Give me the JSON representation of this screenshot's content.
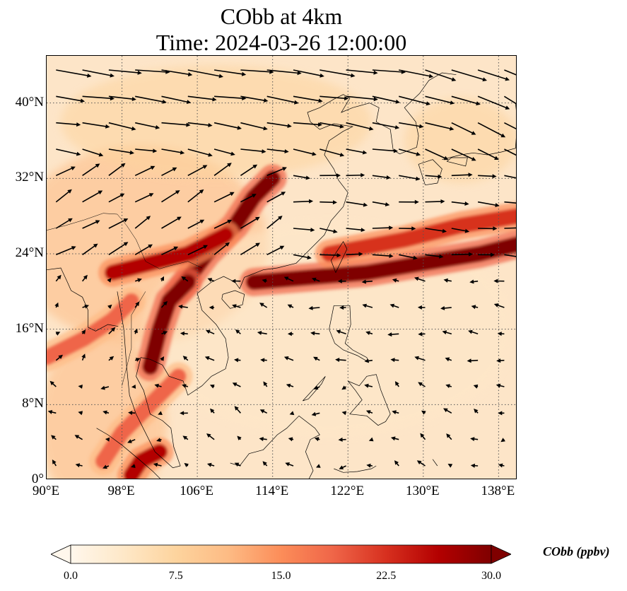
{
  "title": {
    "line1": "CObb at 4km",
    "line2": "Time: 2024-03-26 12:00:00"
  },
  "map": {
    "lon_range": [
      90,
      140
    ],
    "lat_range": [
      0,
      45
    ],
    "lon_ticks": [
      {
        "value": 90,
        "label": "90°E"
      },
      {
        "value": 98,
        "label": "98°E"
      },
      {
        "value": 106,
        "label": "106°E"
      },
      {
        "value": 114,
        "label": "114°E"
      },
      {
        "value": 122,
        "label": "122°E"
      },
      {
        "value": 130,
        "label": "130°E"
      },
      {
        "value": 138,
        "label": "138°E"
      }
    ],
    "lat_ticks": [
      {
        "value": 0,
        "label": "0°"
      },
      {
        "value": 8,
        "label": "8°N"
      },
      {
        "value": 16,
        "label": "16°N"
      },
      {
        "value": 24,
        "label": "24°N"
      },
      {
        "value": 32,
        "label": "32°N"
      },
      {
        "value": 40,
        "label": "40°N"
      }
    ],
    "gridlines": true,
    "variable": "CObb",
    "colormap": "OrRd"
  },
  "colorbar": {
    "label": "CObb (ppbv)",
    "min": 0.0,
    "max": 30.0,
    "extend": "both",
    "ticks": [
      {
        "value": 0.0,
        "label": "0.0"
      },
      {
        "value": 7.5,
        "label": "7.5"
      },
      {
        "value": 15.0,
        "label": "15.0"
      },
      {
        "value": 22.5,
        "label": "22.5"
      },
      {
        "value": 30.0,
        "label": "30.0"
      }
    ],
    "colors": [
      "#fff7ec",
      "#fee8c8",
      "#fdd49e",
      "#fdbb84",
      "#fc8d59",
      "#ef6548",
      "#d7301f",
      "#b30000",
      "#7f0000"
    ]
  },
  "plumes": [
    {
      "points": [
        [
          104,
          20
        ],
        [
          107,
          24
        ],
        [
          110,
          27
        ],
        [
          112,
          30
        ],
        [
          114,
          32
        ]
      ],
      "value": 30
    },
    {
      "points": [
        [
          112,
          21
        ],
        [
          118,
          21.5
        ],
        [
          124,
          22
        ],
        [
          130,
          23
        ],
        [
          136,
          24
        ],
        [
          140,
          25
        ]
      ],
      "value": 30
    },
    {
      "points": [
        [
          90,
          13
        ],
        [
          94,
          15
        ],
        [
          97,
          17
        ],
        [
          99,
          19
        ]
      ],
      "value": 20
    },
    {
      "points": [
        [
          101,
          12
        ],
        [
          102,
          16
        ],
        [
          103,
          19
        ],
        [
          105,
          21
        ]
      ],
      "value": 30
    },
    {
      "points": [
        [
          97,
          22
        ],
        [
          101,
          23
        ],
        [
          105,
          24
        ],
        [
          109,
          26
        ]
      ],
      "value": 26
    },
    {
      "points": [
        [
          120,
          24
        ],
        [
          128,
          25.5
        ],
        [
          134,
          27
        ],
        [
          140,
          28
        ]
      ],
      "value": 22
    },
    {
      "points": [
        [
          96,
          2
        ],
        [
          98,
          5
        ],
        [
          101,
          8
        ],
        [
          104,
          11
        ]
      ],
      "value": 18
    },
    {
      "points": [
        [
          99,
          0.5
        ],
        [
          100,
          2
        ],
        [
          102,
          3
        ]
      ],
      "value": 28
    }
  ]
}
